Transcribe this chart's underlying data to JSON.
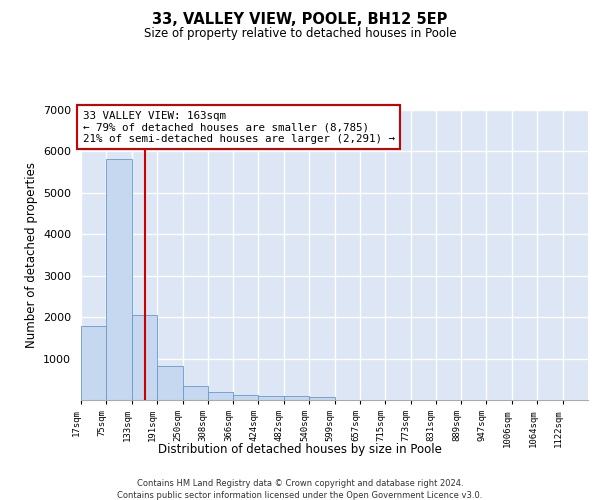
{
  "title1": "33, VALLEY VIEW, POOLE, BH12 5EP",
  "title2": "Size of property relative to detached houses in Poole",
  "xlabel": "Distribution of detached houses by size in Poole",
  "ylabel": "Number of detached properties",
  "bar_edges": [
    17,
    75,
    133,
    191,
    250,
    308,
    366,
    424,
    482,
    540,
    599,
    657,
    715,
    773,
    831,
    889,
    947,
    1006,
    1064,
    1122,
    1180
  ],
  "bar_heights": [
    1780,
    5820,
    2060,
    820,
    340,
    190,
    120,
    100,
    100,
    80,
    0,
    0,
    0,
    0,
    0,
    0,
    0,
    0,
    0,
    0
  ],
  "bar_color": "#c5d8ef",
  "bar_edge_color": "#6699cc",
  "property_line_x": 163,
  "property_line_color": "#cc0000",
  "annotation_text": "33 VALLEY VIEW: 163sqm\n← 79% of detached houses are smaller (8,785)\n21% of semi-detached houses are larger (2,291) →",
  "annotation_box_edgecolor": "#cc0000",
  "ylim": [
    0,
    7000
  ],
  "yticks": [
    0,
    1000,
    2000,
    3000,
    4000,
    5000,
    6000,
    7000
  ],
  "background_color": "#dce6f5",
  "grid_color": "#ffffff",
  "footer1": "Contains HM Land Registry data © Crown copyright and database right 2024.",
  "footer2": "Contains public sector information licensed under the Open Government Licence v3.0."
}
